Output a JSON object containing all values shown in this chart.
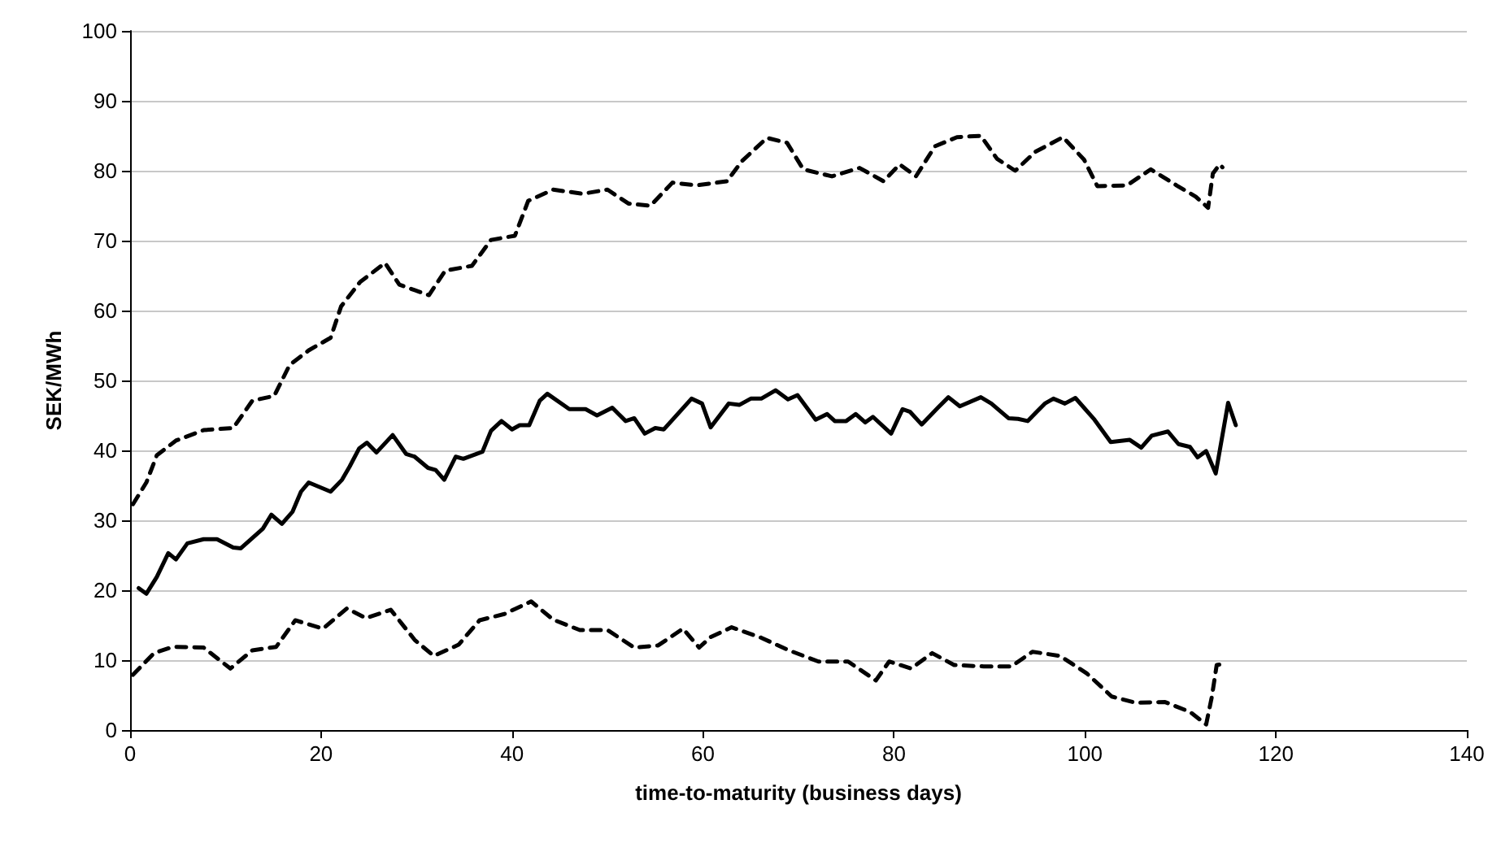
{
  "chart_data": {
    "type": "line",
    "xlabel": "time-to-maturity (business days)",
    "ylabel": "SEK/MWh",
    "xlim": [
      0,
      140
    ],
    "xticks": [
      0,
      20,
      40,
      60,
      80,
      100,
      120,
      140
    ],
    "ylim": [
      0,
      100
    ],
    "yticks": [
      0,
      10,
      20,
      30,
      40,
      50,
      60,
      70,
      80,
      90,
      100
    ],
    "grid": "y",
    "marker": "none",
    "series": [
      {
        "color": "#000000",
        "line_style": "dashed",
        "x": [
          0.3,
          1.7,
          2.8,
          4.8,
          7.7,
          10.8,
          12.8,
          15.1,
          16.7,
          18.7,
          21,
          22.1,
          24.1,
          26.7,
          28.2,
          31.3,
          33,
          35.8,
          37.8,
          40.3,
          41.7,
          44.3,
          47.4,
          50,
          52.2,
          54.5,
          56.8,
          59.3,
          62.5,
          64.1,
          66.7,
          68.8,
          70.5,
          73.5,
          76.4,
          78.9,
          80.6,
          82.3,
          84.3,
          86.6,
          89.1,
          90.8,
          92.7,
          94.8,
          97.7,
          99.9,
          101.3,
          104.4,
          106.9,
          109.6,
          111.6,
          112.9,
          113.4,
          114.1,
          114.4
        ],
        "values": [
          32.3,
          35.4,
          39.3,
          41.4,
          42.9,
          43.2,
          47.1,
          47.8,
          52.2,
          54.3,
          56.1,
          60.6,
          64.1,
          66.8,
          63.7,
          62.2,
          65.7,
          66.4,
          70.1,
          70.7,
          75.7,
          77.3,
          76.7,
          77.3,
          75.3,
          75,
          78.3,
          77.9,
          78.5,
          81.4,
          84.7,
          84,
          80.2,
          79.2,
          80.4,
          78.5,
          80.9,
          79.2,
          83.5,
          84.8,
          85,
          81.7,
          80,
          82.7,
          84.8,
          81.6,
          77.8,
          77.9,
          80.2,
          77.9,
          76.3,
          74.7,
          79.6,
          80.9,
          80.5
        ]
      },
      {
        "color": "#000000",
        "line_style": "solid",
        "x": [
          0.9,
          1.7,
          2.8,
          4,
          4.8,
          6,
          7.7,
          9.1,
          10.8,
          11.6,
          13.9,
          14.8,
          15.9,
          17,
          17.9,
          18.7,
          21,
          22.2,
          23,
          24,
          24.8,
          25.8,
          27.5,
          28.9,
          29.8,
          31.2,
          32,
          32.9,
          34.1,
          34.9,
          36.9,
          37.8,
          38.9,
          40,
          40.8,
          41.8,
          42.9,
          43.7,
          46,
          47.7,
          48.9,
          50.5,
          51.9,
          52.8,
          53.9,
          55,
          55.9,
          58.8,
          59.9,
          60.8,
          62.7,
          63.8,
          65,
          66.1,
          67.6,
          68.9,
          69.9,
          71.8,
          73,
          73.8,
          75,
          76,
          77,
          77.8,
          79.7,
          80.9,
          81.7,
          82.9,
          84.6,
          85.7,
          86.9,
          89.1,
          90.2,
          92,
          93,
          94,
          95.8,
          96.7,
          97.9,
          99,
          101,
          102.7,
          104.7,
          105.9,
          107,
          108.7,
          109.8,
          111,
          111.8,
          112.7,
          113.7,
          115,
          115.8
        ],
        "values": [
          20.3,
          19.5,
          21.9,
          25.3,
          24.4,
          26.7,
          27.3,
          27.3,
          26.1,
          26,
          28.8,
          30.8,
          29.5,
          31.2,
          34.1,
          35.4,
          34.1,
          35.8,
          37.7,
          40.3,
          41.1,
          39.7,
          42.2,
          39.5,
          39.1,
          37.5,
          37.2,
          35.8,
          39.1,
          38.8,
          39.8,
          42.8,
          44.2,
          43,
          43.6,
          43.6,
          47.1,
          48.1,
          45.9,
          45.9,
          45,
          46.1,
          44.2,
          44.6,
          42.4,
          43.2,
          43,
          47.4,
          46.7,
          43.3,
          46.7,
          46.5,
          47.4,
          47.4,
          48.6,
          47.3,
          47.9,
          44.4,
          45.2,
          44.2,
          44.2,
          45.2,
          44,
          44.8,
          42.4,
          45.9,
          45.5,
          43.7,
          46.1,
          47.6,
          46.3,
          47.6,
          46.7,
          44.6,
          44.5,
          44.2,
          46.7,
          47.4,
          46.7,
          47.5,
          44.4,
          41.2,
          41.5,
          40.4,
          42.1,
          42.7,
          40.9,
          40.5,
          39,
          39.9,
          36.7,
          46.8,
          43.6
        ]
      },
      {
        "color": "#000000",
        "line_style": "dashed",
        "x": [
          0.3,
          2.5,
          4.5,
          7.7,
          10.5,
          12.8,
          15.3,
          17.3,
          20.2,
          22.7,
          24.7,
          27.3,
          29.8,
          31.8,
          34.4,
          36.6,
          39.2,
          42,
          44.3,
          47.1,
          50,
          52.8,
          55.3,
          57.9,
          59.6,
          60.8,
          63,
          66.1,
          69,
          72.1,
          75.2,
          78.1,
          79.5,
          81.8,
          84,
          86.3,
          89.4,
          92.3,
          94.5,
          97.4,
          100.2,
          102.8,
          105.3,
          108.4,
          111,
          112.7,
          113.3,
          113.8,
          114.8
        ],
        "values": [
          7.9,
          11,
          11.9,
          11.8,
          8.8,
          11.4,
          11.9,
          15.7,
          14.5,
          17.4,
          16,
          17.2,
          12.9,
          10.6,
          12.2,
          15.7,
          16.6,
          18.4,
          15.8,
          14.3,
          14.3,
          11.8,
          12.1,
          14.5,
          11.8,
          13.3,
          14.7,
          13.2,
          11.4,
          9.8,
          9.8,
          7.1,
          9.8,
          8.8,
          11,
          9.3,
          9.1,
          9.1,
          11.2,
          10.6,
          8.1,
          4.8,
          3.9,
          4,
          2.6,
          0.8,
          4.8,
          9.3,
          9.5
        ]
      }
    ]
  }
}
